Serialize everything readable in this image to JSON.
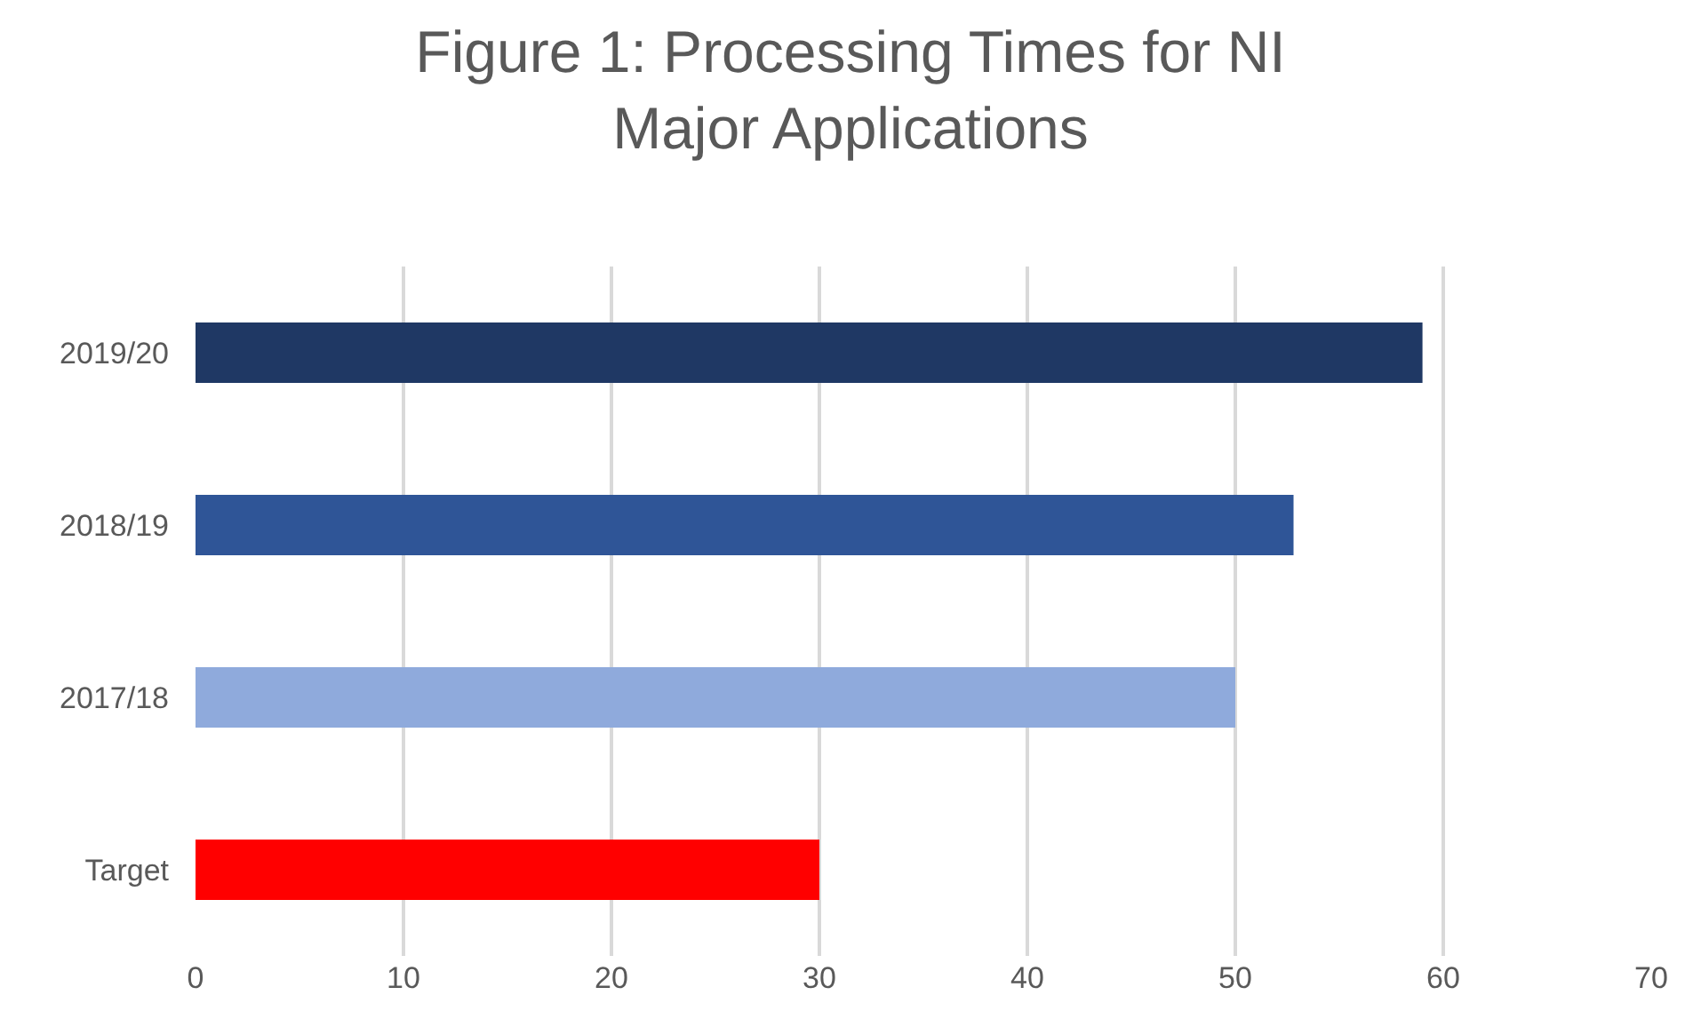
{
  "chart_data": {
    "type": "bar",
    "orientation": "horizontal",
    "title": "Figure 1: Processing Times for NI Major Applications",
    "categories": [
      "2019/20",
      "2018/19",
      "2017/18",
      "Target"
    ],
    "values": [
      59,
      52.8,
      50,
      30
    ],
    "colors": [
      "#1f3864",
      "#2f5597",
      "#8faadc",
      "#ff0000"
    ],
    "xlim": [
      0,
      70
    ],
    "xticks": [
      0,
      10,
      20,
      30,
      40,
      50,
      60,
      70
    ],
    "grid": "x"
  }
}
